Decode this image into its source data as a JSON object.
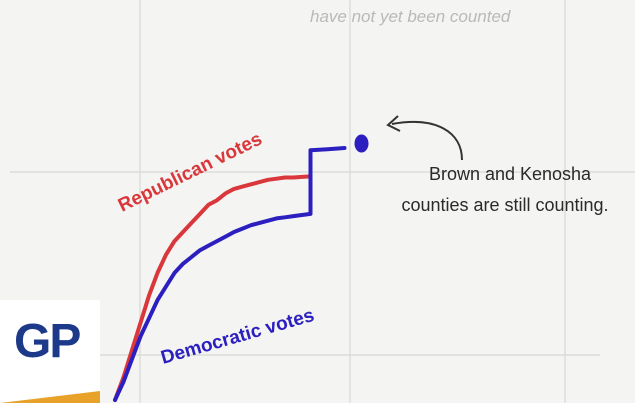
{
  "top_note": "have not yet been counted",
  "annotation": {
    "line1": "Brown and Kenosha",
    "line2": "counties are still counting."
  },
  "logo": {
    "text": "GP"
  },
  "colors": {
    "republican": "#d9373b",
    "democratic": "#2b1fc0",
    "grid": "#d8d8d8",
    "logo_text": "#1d3a8a",
    "logo_stripe": "#e8a22a",
    "arrow": "#333333"
  },
  "chart_data": {
    "type": "line",
    "title": "",
    "xlabel": "",
    "ylabel": "",
    "grid": true,
    "series": [
      {
        "name": "Republican votes",
        "x": [
          0,
          2,
          4,
          6,
          8,
          10,
          12,
          14,
          16,
          18,
          20,
          22,
          24,
          26,
          28,
          30,
          32,
          34,
          36,
          38,
          40,
          42,
          44,
          46
        ],
        "y": [
          0,
          10,
          22,
          34,
          46,
          56,
          64,
          70,
          74,
          78,
          82,
          86,
          88,
          91,
          93,
          94,
          95,
          96,
          97,
          97.5,
          98,
          98,
          98.3,
          98.5
        ]
      },
      {
        "name": "Democratic votes",
        "x": [
          0,
          2,
          4,
          6,
          8,
          10,
          12,
          14,
          16,
          18,
          20,
          22,
          24,
          26,
          28,
          30,
          32,
          34,
          36,
          38,
          40,
          42,
          44,
          46,
          46,
          50,
          54
        ],
        "y": [
          0,
          8,
          18,
          28,
          36,
          44,
          50,
          56,
          60,
          63,
          66,
          68,
          70,
          72,
          74,
          75.5,
          77,
          78,
          79,
          80,
          80.5,
          81,
          81.5,
          82,
          110,
          110.5,
          111
        ]
      }
    ],
    "end_marker": {
      "x": 58,
      "y": 113
    }
  }
}
